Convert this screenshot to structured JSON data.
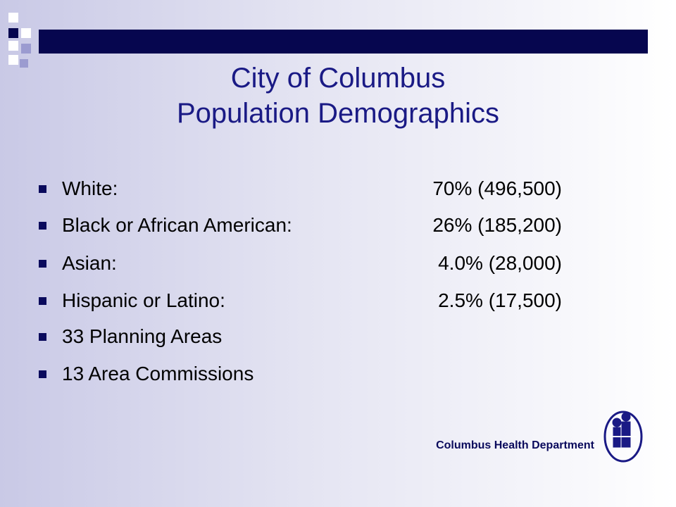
{
  "title": {
    "line1": "City of Columbus",
    "line2": "Population Demographics"
  },
  "bullets": [
    {
      "label": "White:",
      "value": "70% (496,500)"
    },
    {
      "label": "Black or African American:",
      "value": "26% (185,200)"
    },
    {
      "label": "Asian:",
      "value": "4.0% (28,000)"
    },
    {
      "label": "Hispanic or Latino:",
      "value": "2.5% (17,500)"
    },
    {
      "label": "33 Planning Areas"
    },
    {
      "label": "13 Area Commissions"
    }
  ],
  "footer": "Columbus Health Department"
}
